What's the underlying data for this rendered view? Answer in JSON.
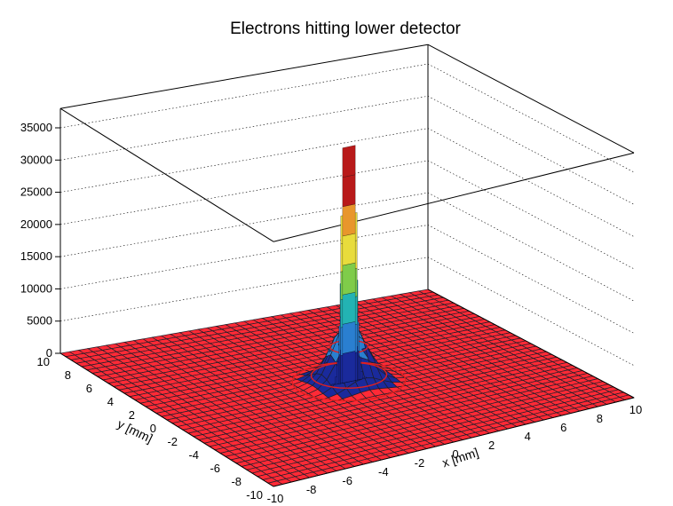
{
  "chart_data": {
    "type": "lego_surface_3d",
    "title": "Electrons hitting lower detector",
    "xlabel": "x [mm]",
    "ylabel": "y [mm]",
    "zlabel": "",
    "x_range": [
      -10,
      10
    ],
    "y_range": [
      -10,
      10
    ],
    "z_range": [
      0,
      38000
    ],
    "x_ticks": [
      -10,
      -8,
      -6,
      -4,
      -2,
      0,
      2,
      4,
      6,
      8,
      10
    ],
    "y_ticks": [
      -10,
      -8,
      -6,
      -4,
      -2,
      0,
      2,
      4,
      6,
      8,
      10
    ],
    "z_ticks": [
      0,
      5000,
      10000,
      15000,
      20000,
      25000,
      30000,
      35000
    ],
    "bins": 40,
    "peak": {
      "x": 0,
      "y": 0,
      "height": 36500
    },
    "profile_sigma_mm": 0.85,
    "spike_bars": [
      {
        "r_mm": 0.0,
        "value": 36500
      },
      {
        "r_mm": 0.5,
        "value": 26000
      },
      {
        "r_mm": 0.7,
        "value": 15500
      },
      {
        "r_mm": 1.0,
        "value": 9000
      },
      {
        "r_mm": 1.5,
        "value": 3500
      },
      {
        "r_mm": 2.0,
        "value": 1200
      },
      {
        "r_mm": 3.0,
        "value": 150
      }
    ],
    "surface_color": "#ff2a36",
    "mesh_color": "#1f1f2a",
    "palette": [
      "#1a2a9c",
      "#2a7fd0",
      "#23b3b3",
      "#7fcc4a",
      "#e8dc3c",
      "#e8962c",
      "#b81a1a"
    ]
  }
}
